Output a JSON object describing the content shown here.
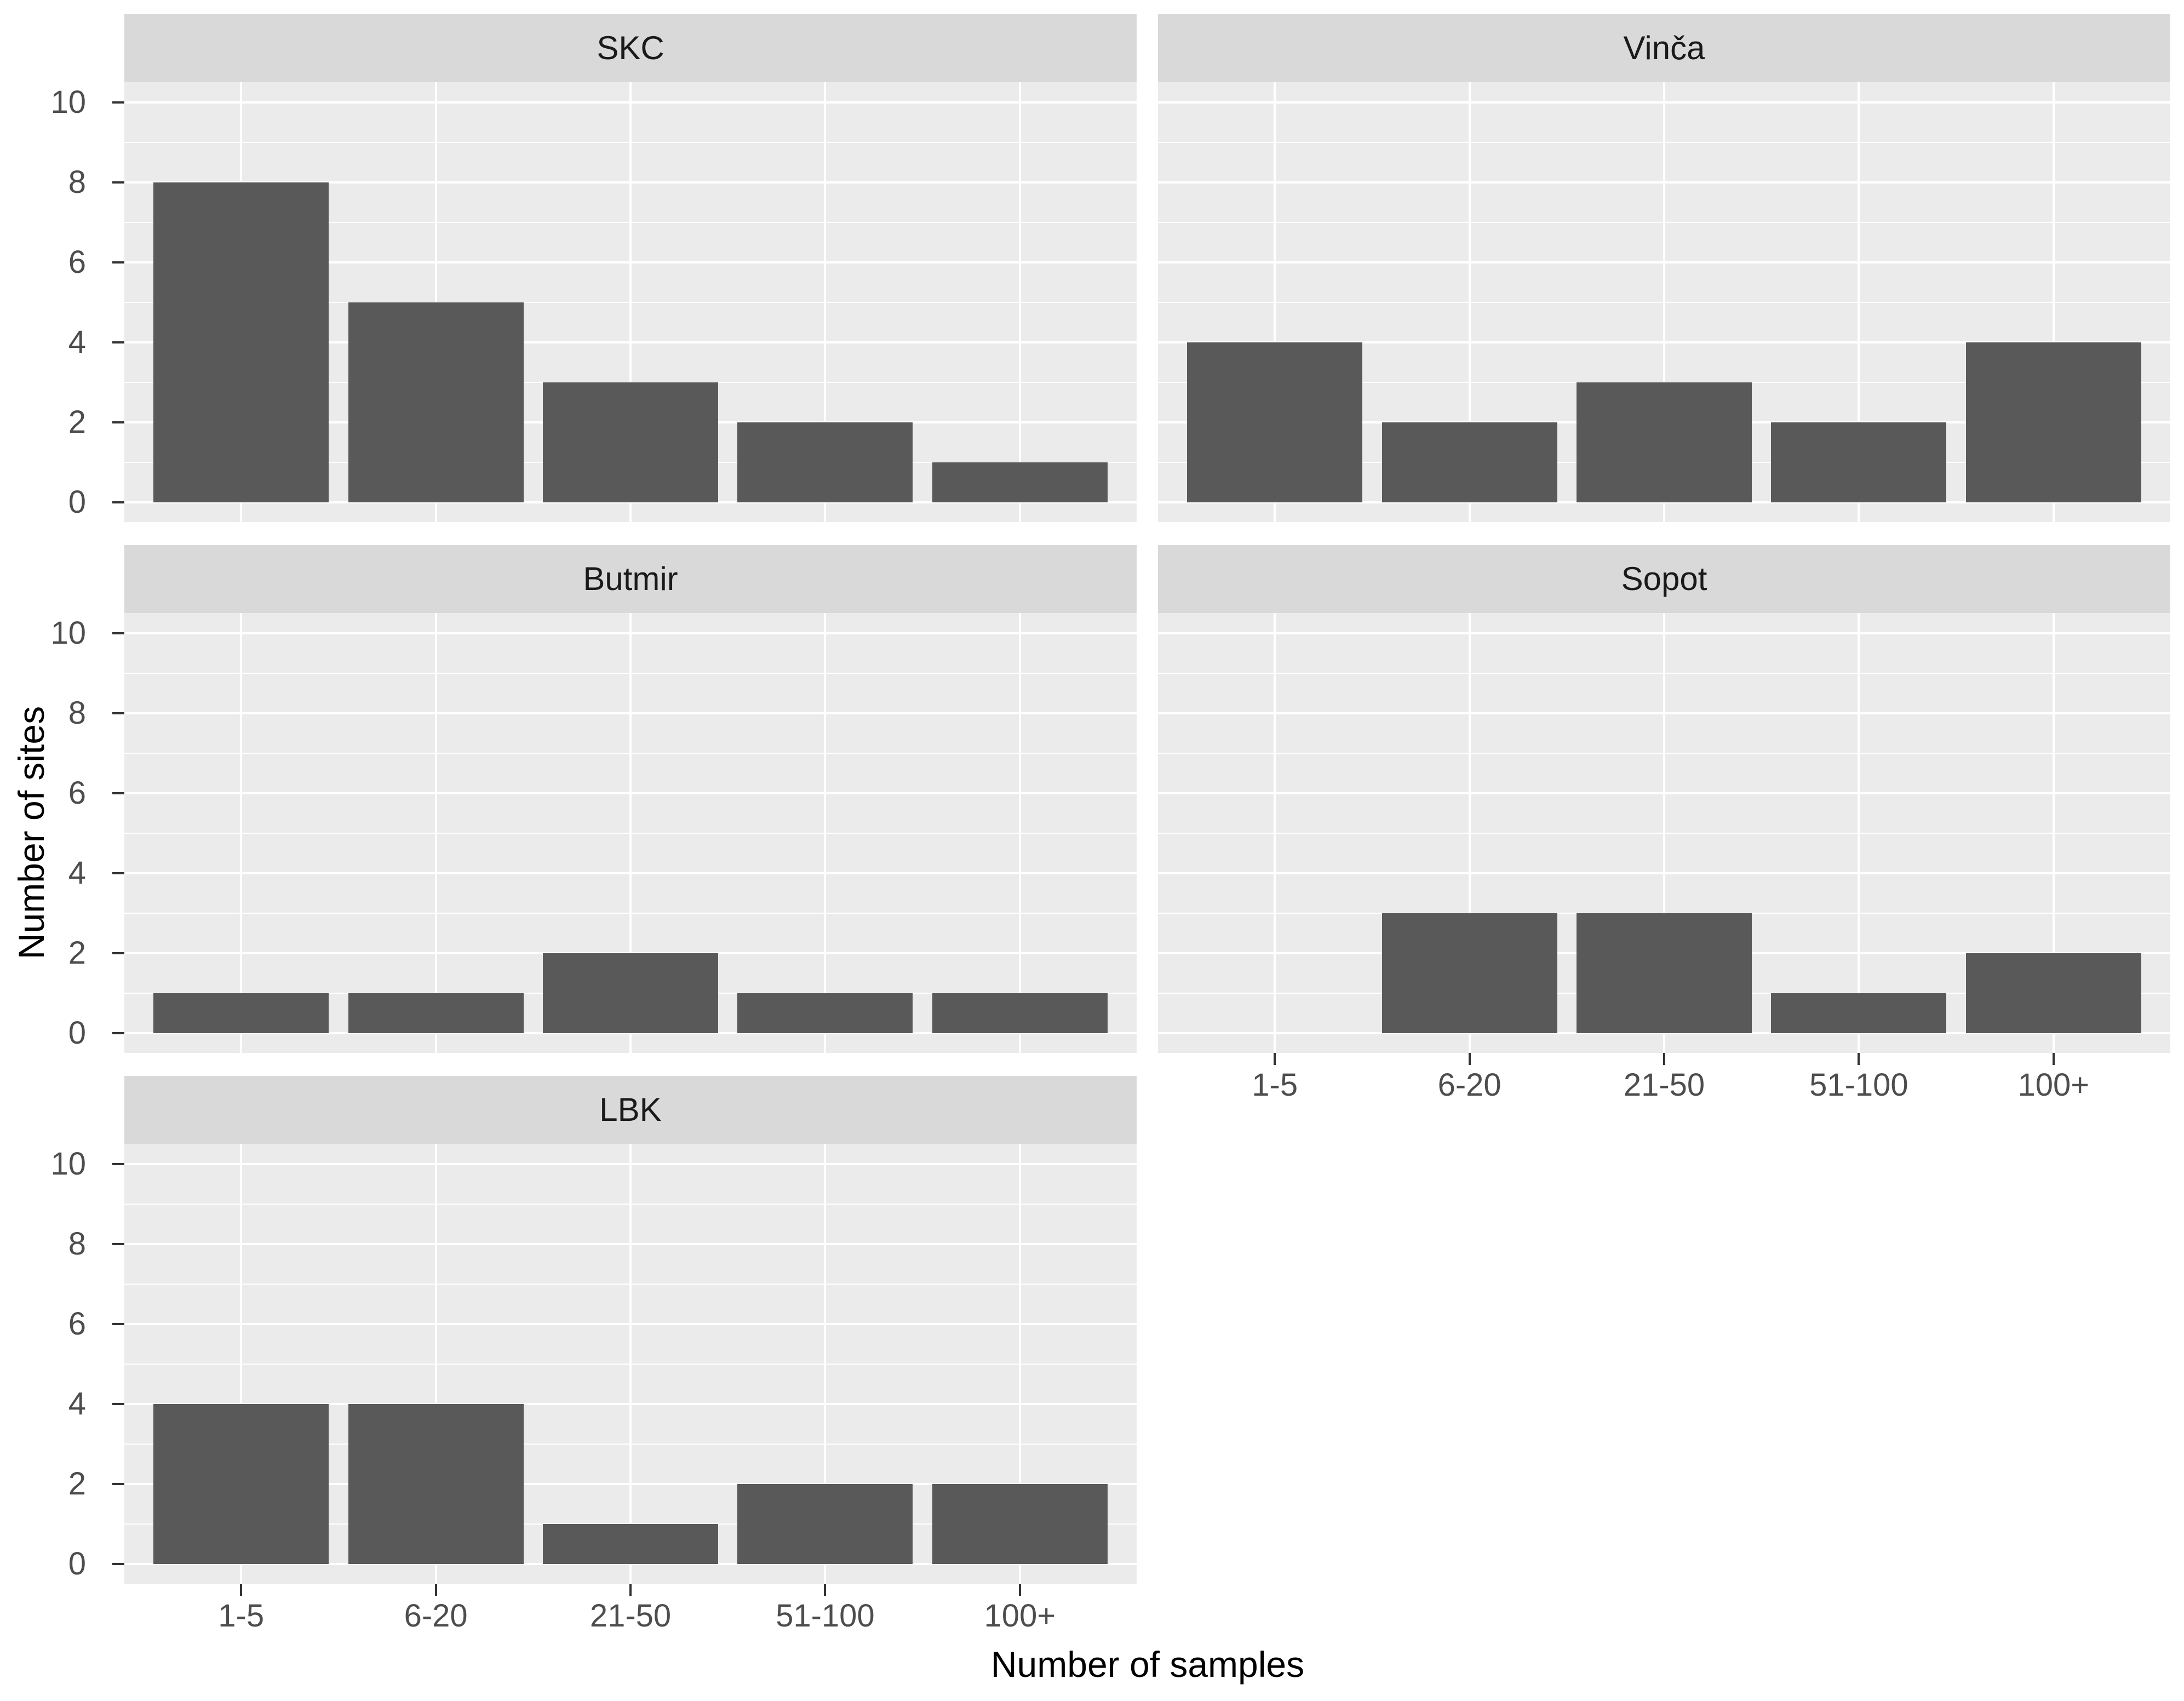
{
  "chart_data": {
    "type": "bar",
    "title": "",
    "xlabel": "Number of samples",
    "ylabel": "Number of sites",
    "categories": [
      "1-5",
      "6-20",
      "21-50",
      "51-100",
      "100+"
    ],
    "y_ticks": [
      "0",
      "2",
      "4",
      "6",
      "8",
      "10"
    ],
    "y_tick_values": [
      0,
      2,
      4,
      6,
      8,
      10
    ],
    "y_minor_values": [
      1,
      3,
      5,
      7,
      9
    ],
    "ylim": [
      0,
      10
    ],
    "grid": "on",
    "legend": "none",
    "facets": [
      {
        "name": "SKC",
        "values": [
          8,
          5,
          3,
          2,
          1
        ]
      },
      {
        "name": "Vinča",
        "values": [
          4,
          2,
          3,
          2,
          4
        ]
      },
      {
        "name": "Butmir",
        "values": [
          1,
          1,
          2,
          1,
          1
        ]
      },
      {
        "name": "Sopot",
        "values": [
          0,
          3,
          3,
          1,
          2
        ]
      },
      {
        "name": "LBK",
        "values": [
          4,
          4,
          1,
          2,
          2
        ]
      }
    ]
  },
  "colors": {
    "bar": "#595959",
    "panel_bg": "#EBEBEB",
    "strip_bg": "#D9D9D9",
    "gridline": "#FFFFFF",
    "axis_text": "#4D4D4D",
    "tick_mark": "#333333",
    "strip_text": "#1A1A1A",
    "axis_title": "#000000",
    "background": "#FFFFFF"
  }
}
